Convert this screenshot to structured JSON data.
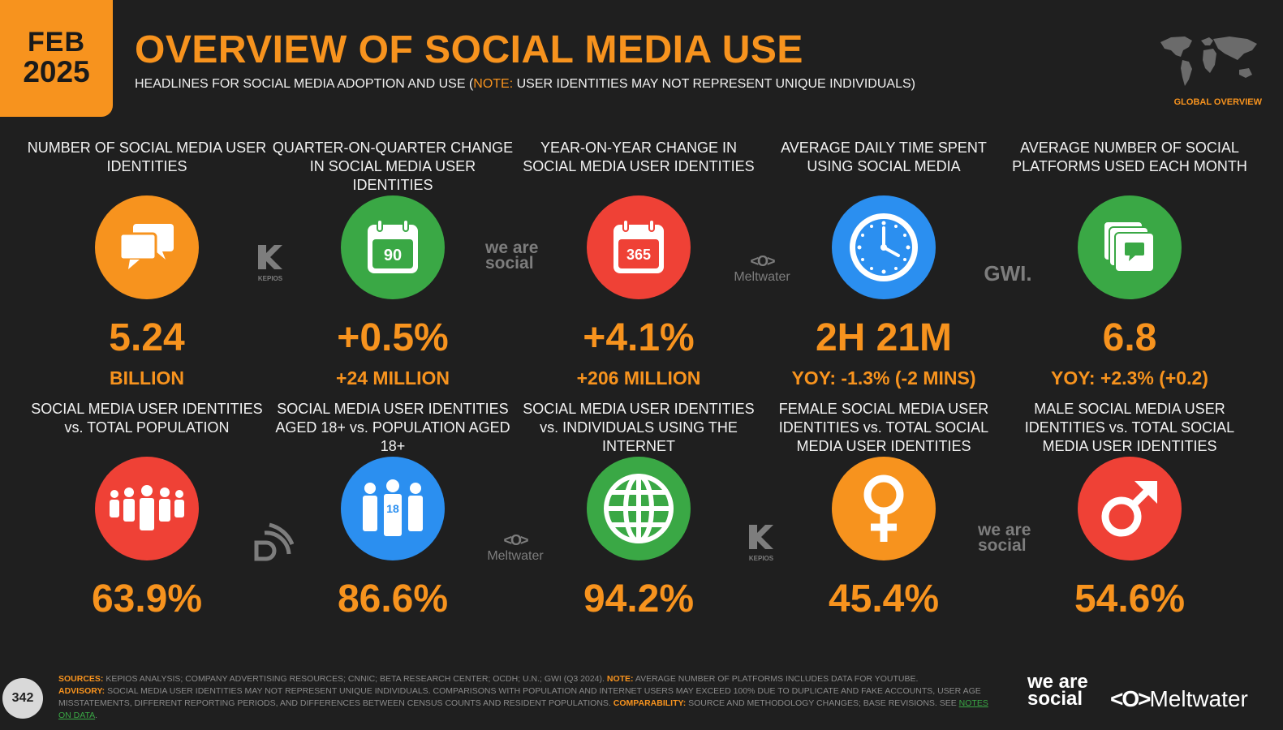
{
  "header": {
    "badge_month": "FEB",
    "badge_year": "2025",
    "title": "OVERVIEW OF SOCIAL MEDIA USE",
    "subtitle_pre": "HEADLINES FOR SOCIAL MEDIA ADOPTION AND USE (",
    "subtitle_note": "NOTE:",
    "subtitle_post": " USER IDENTITIES MAY NOT REPRESENT UNIQUE INDIVIDUALS)",
    "region_label": "GLOBAL OVERVIEW"
  },
  "row1": [
    {
      "label": "NUMBER OF SOCIAL MEDIA USER IDENTITIES",
      "value": "5.24",
      "sub": "BILLION",
      "icon": "chat-bubbles-icon",
      "color": "#f7931e"
    },
    {
      "label": "QUARTER-ON-QUARTER CHANGE IN SOCIAL MEDIA USER IDENTITIES",
      "value": "+0.5%",
      "sub": "+24 MILLION",
      "icon": "calendar-icon",
      "icon_text": "90",
      "color": "#3aa845"
    },
    {
      "label": "YEAR-ON-YEAR CHANGE IN SOCIAL MEDIA USER IDENTITIES",
      "value": "+4.1%",
      "sub": "+206 MILLION",
      "icon": "calendar-icon",
      "icon_text": "365",
      "color": "#ef4136"
    },
    {
      "label": "AVERAGE DAILY TIME SPENT USING SOCIAL MEDIA",
      "value": "2H 21M",
      "sub": "YOY: -1.3% (-2 MINS)",
      "icon": "clock-icon",
      "color": "#2b8ff0"
    },
    {
      "label": "AVERAGE NUMBER OF SOCIAL PLATFORMS USED EACH MONTH",
      "value": "6.8",
      "sub": "YOY: +2.3% (+0.2)",
      "icon": "stacked-chat-icon",
      "color": "#3aa845"
    }
  ],
  "row2": [
    {
      "label": "SOCIAL MEDIA USER IDENTITIES vs. TOTAL POPULATION",
      "value": "63.9%",
      "icon": "people-group-icon",
      "color": "#ef4136"
    },
    {
      "label": "SOCIAL MEDIA USER IDENTITIES AGED 18+ vs. POPULATION AGED 18+",
      "value": "86.6%",
      "icon": "adults-18-icon",
      "icon_text": "18",
      "color": "#2b8ff0"
    },
    {
      "label": "SOCIAL MEDIA USER IDENTITIES vs. INDIVIDUALS USING THE INTERNET",
      "value": "94.2%",
      "icon": "globe-icon",
      "color": "#3aa845"
    },
    {
      "label": "FEMALE SOCIAL MEDIA USER IDENTITIES vs. TOTAL SOCIAL MEDIA USER IDENTITIES",
      "value": "45.4%",
      "icon": "female-symbol-icon",
      "color": "#f7931e"
    },
    {
      "label": "MALE SOCIAL MEDIA USER IDENTITIES vs. TOTAL SOCIAL MEDIA USER IDENTITIES",
      "value": "54.6%",
      "icon": "male-symbol-icon",
      "color": "#ef4136"
    }
  ],
  "source_logos": {
    "kepios": "KEPIOS",
    "wearesocial": "we are social",
    "meltwater": "Meltwater",
    "gwi": "GWI."
  },
  "footer": {
    "sources_label": "SOURCES:",
    "sources_text": " KEPIOS ANALYSIS; COMPANY ADVERTISING RESOURCES; CNNIC; BETA RESEARCH CENTER; OCDH; U.N.; GWI (Q3 2024). ",
    "note_label": "NOTE:",
    "note_text": " AVERAGE NUMBER OF PLATFORMS INCLUDES DATA FOR YOUTUBE.",
    "advisory_label": "ADVISORY:",
    "advisory_text": " SOCIAL MEDIA USER IDENTITIES MAY NOT REPRESENT UNIQUE INDIVIDUALS. COMPARISONS WITH POPULATION AND INTERNET USERS MAY EXCEED 100% DUE TO DUPLICATE AND FAKE ACCOUNTS, USER AGE MISSTATEMENTS, DIFFERENT REPORTING PERIODS, AND DIFFERENCES BETWEEN CENSUS COUNTS AND RESIDENT POPULATIONS. ",
    "comparability_label": "COMPARABILITY:",
    "comparability_text": " SOURCE AND METHODOLOGY CHANGES; BASE REVISIONS. SEE ",
    "notes_link": "NOTES ON DATA",
    "end": ".",
    "page_number": "342",
    "brand_was": "we are social",
    "brand_meltwater": "Meltwater"
  }
}
